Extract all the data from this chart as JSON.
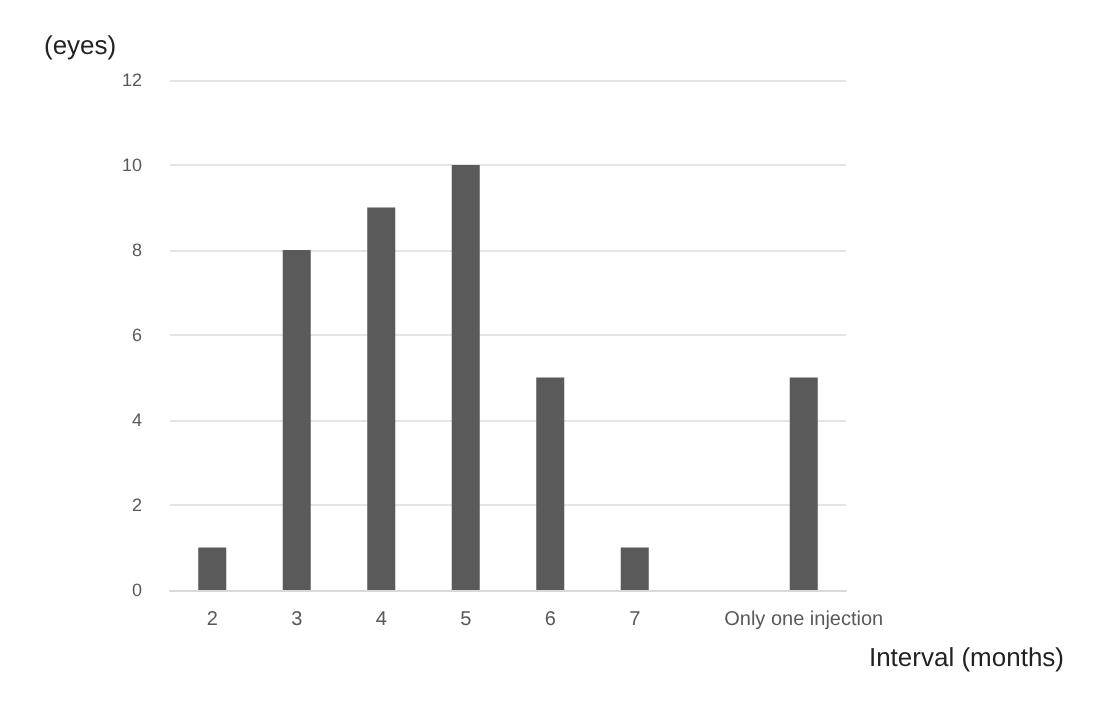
{
  "chart_data": {
    "type": "bar",
    "xlabel": "Interval (months)",
    "ylabel": "(eyes)",
    "categories": [
      "2",
      "3",
      "4",
      "5",
      "6",
      "7",
      null,
      "Only one injection"
    ],
    "values": [
      1,
      8,
      9,
      10,
      5,
      1,
      null,
      5
    ],
    "color": "#5a5a5a",
    "ylim": [
      0,
      12
    ],
    "yticks": [
      0,
      2,
      4,
      6,
      8,
      10,
      12
    ],
    "grid": "y"
  }
}
